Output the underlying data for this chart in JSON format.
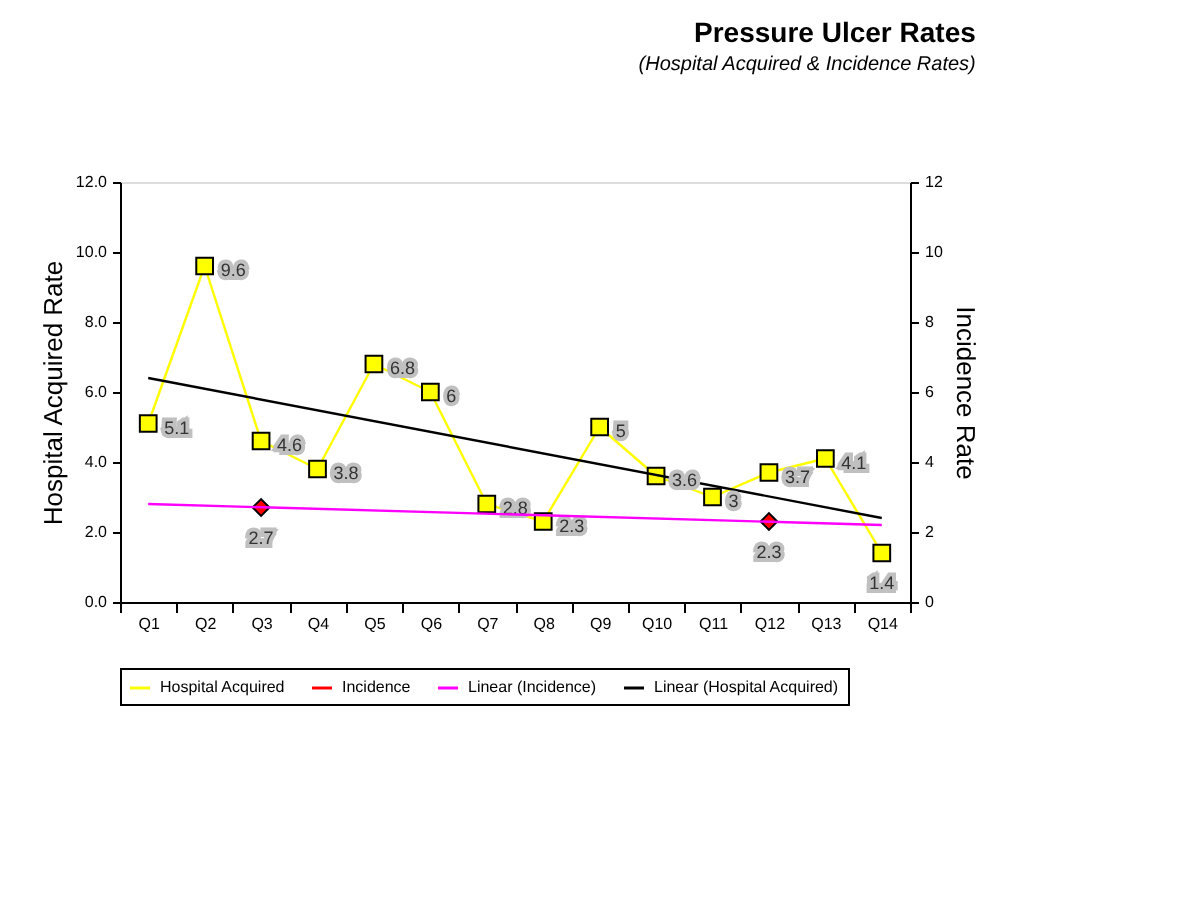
{
  "chart_data": {
    "type": "line",
    "title": "Pressure Ulcer Rates",
    "subtitle": "(Hospital Acquired & Incidence Rates)",
    "ylabel": "Hospital Acquired Rate",
    "y2label": "Incidence Rate",
    "categories": [
      "Q1",
      "Q2",
      "Q3",
      "Q4",
      "Q5",
      "Q6",
      "Q7",
      "Q8",
      "Q9",
      "Q10",
      "Q11",
      "Q12",
      "Q13",
      "Q14"
    ],
    "series": [
      {
        "name": "Hospital Acquired",
        "color": "#ffff00",
        "marker": "square",
        "values": [
          5.1,
          9.6,
          4.6,
          3.8,
          6.8,
          6,
          2.8,
          2.3,
          5,
          3.6,
          3,
          3.7,
          4.1,
          1.4
        ],
        "value_labels": [
          "5.1",
          "9.6",
          "4.6",
          "3.8",
          "6.8",
          "6",
          "2.8",
          "2.3",
          "5",
          "3.6",
          "3",
          "3.7",
          "4.1",
          "1.4"
        ]
      },
      {
        "name": "Incidence",
        "type": "scatter",
        "color": "#ff0000",
        "marker": "diamond",
        "axis": "y2",
        "values": [
          null,
          null,
          2.7,
          null,
          null,
          null,
          null,
          null,
          null,
          null,
          null,
          2.3,
          null,
          null
        ],
        "value_labels": [
          null,
          null,
          "2.7",
          null,
          null,
          null,
          null,
          null,
          null,
          null,
          null,
          "2.3",
          null,
          null
        ]
      },
      {
        "name": "Linear (Incidence)",
        "color": "#ff00ff",
        "marker": "none",
        "axis": "y2",
        "x": [
          "Q1",
          "Q14"
        ],
        "values": [
          2.8,
          2.2
        ]
      },
      {
        "name": "Linear (Hospital Acquired)",
        "color": "#000000",
        "marker": "none",
        "x": [
          "Q1",
          "Q14"
        ],
        "values": [
          6.4,
          2.4
        ]
      }
    ],
    "ylim": [
      0,
      12
    ],
    "yticks": [
      {
        "value": 0,
        "label": "0.0"
      },
      {
        "value": 2,
        "label": "2.0"
      },
      {
        "value": 4,
        "label": "4.0"
      },
      {
        "value": 6,
        "label": "6.0"
      },
      {
        "value": 8,
        "label": "8.0"
      },
      {
        "value": 10,
        "label": "10.0"
      },
      {
        "value": 12,
        "label": "12.0"
      }
    ],
    "y2lim": [
      0,
      12
    ],
    "y2ticks": [
      0,
      2,
      4,
      6,
      8,
      10,
      12
    ],
    "legend": "bottom",
    "grid": false
  }
}
